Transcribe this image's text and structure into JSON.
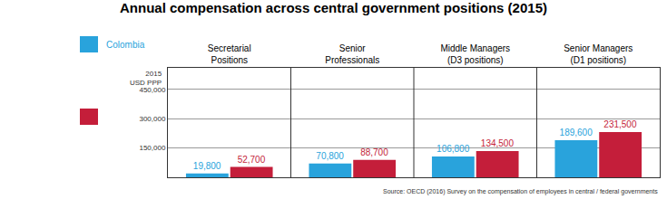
{
  "chart_data": {
    "type": "bar",
    "title": "Annual compensation across central government positions (2015)",
    "y_label": "2015 USD PPP",
    "source": "Source: OECD (2016) Survey on the compensation of employees in central / federal governments",
    "categories": [
      "Secretarial Positions",
      "Senior Professionals",
      "Middle Managers (D3 positions)",
      "Senior Managers (D1 positions)"
    ],
    "series": [
      {
        "name": "Colombia",
        "color": "#29a3dc",
        "values": [
          19800,
          70800,
          106800,
          189600
        ],
        "value_labels": [
          "19,800",
          "70,800",
          "106,800",
          "189,600"
        ]
      },
      {
        "color": "#c41e3a",
        "values": [
          52700,
          88700,
          134500,
          231500
        ],
        "value_labels": [
          "52,700",
          "88,700",
          "134,500",
          "231,500"
        ]
      }
    ],
    "ylim": [
      0,
      560000
    ],
    "yticks": [
      {
        "value": 150000,
        "label": "150,000"
      },
      {
        "value": 300000,
        "label": "300,000"
      },
      {
        "value": 450000,
        "label": "450,000"
      }
    ],
    "grid": true,
    "data_labels": true
  }
}
